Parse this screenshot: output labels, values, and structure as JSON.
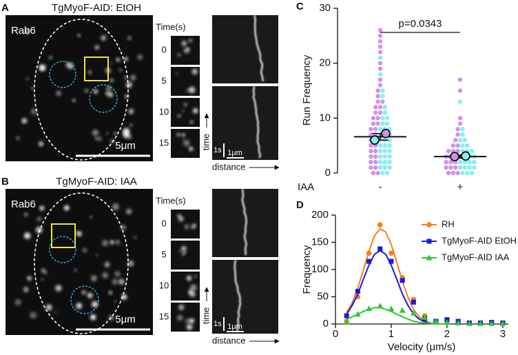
{
  "panels": [
    {
      "label": "A",
      "title": "TgMyoF-AID: EtOH",
      "stain": "Rab6",
      "scale_bar": "5μm",
      "time_header": "Time(s)",
      "times": [
        0,
        5,
        10,
        15
      ],
      "kymo_time": "time",
      "kymo_time_bar": "1s",
      "kymo_dist_bar": "1μm",
      "kymo_dist": "distance"
    },
    {
      "label": "B",
      "title": "TgMyoF-AID: IAA",
      "stain": "Rab6",
      "scale_bar": "5μm",
      "time_header": "Time(s)",
      "times": [
        0,
        5,
        10,
        15
      ],
      "kymo_time": "time",
      "kymo_time_bar": "1s",
      "kymo_dist_bar": "1μm",
      "kymo_dist": "distance"
    }
  ],
  "chart_data": [
    {
      "type": "dot",
      "label": "C",
      "ylabel": "Run Frequency",
      "xlabel": "IAA",
      "categories": [
        "-",
        "+"
      ],
      "ylim": [
        0,
        30
      ],
      "yticks": [
        0,
        10,
        20,
        30
      ],
      "dot_colors": [
        "#d291ea",
        "#86eef0"
      ],
      "dots": [
        [
          [
            26,
            25,
            24,
            23,
            22,
            20,
            19,
            17,
            16,
            15,
            14,
            13,
            13,
            12,
            12,
            11,
            11,
            10,
            10,
            9,
            9,
            8,
            8,
            7,
            7,
            6,
            6,
            5,
            5,
            4,
            4,
            3,
            3,
            2,
            2,
            1,
            1,
            0,
            0
          ],
          [
            21,
            18,
            15,
            14,
            12,
            11,
            10,
            10,
            9,
            9,
            8,
            8,
            8,
            7,
            7,
            7,
            6,
            6,
            6,
            5,
            5,
            5,
            4,
            4,
            4,
            3,
            3,
            3,
            2,
            2,
            2,
            1,
            1,
            1,
            0,
            0
          ]
        ],
        [
          [
            17,
            15,
            10,
            9,
            8,
            7,
            6,
            5,
            5,
            4,
            4,
            4,
            3,
            3,
            3,
            2,
            2,
            2,
            1,
            1,
            1,
            0,
            0,
            0
          ],
          [
            13,
            8,
            7,
            6,
            6,
            5,
            5,
            4,
            4,
            4,
            3,
            3,
            3,
            3,
            2,
            2,
            2,
            2,
            1,
            1,
            1,
            1,
            0,
            0,
            0
          ]
        ]
      ],
      "replicate_means": [
        [
          7.2,
          6.0
        ],
        [
          3.0,
          3.1
        ]
      ],
      "means": [
        6.6,
        3.0
      ],
      "errors": [
        0.6,
        0.3
      ],
      "annotation": "p=0.0343"
    },
    {
      "type": "line",
      "label": "D",
      "ylabel": "Frequency",
      "xlabel": "Velocity (μm/s)",
      "xlim": [
        0,
        3.1
      ],
      "xticks": [
        0,
        1,
        2,
        3
      ],
      "ylim": [
        0,
        200
      ],
      "yticks": [
        0,
        50,
        100,
        150,
        200
      ],
      "x": [
        0.2,
        0.4,
        0.6,
        0.8,
        1.0,
        1.2,
        1.4,
        1.6,
        1.8,
        2.0,
        2.2,
        2.4,
        2.6,
        2.8,
        3.0
      ],
      "fit_x": [
        0.2,
        0.3,
        0.4,
        0.5,
        0.6,
        0.7,
        0.8,
        0.9,
        1.0,
        1.1,
        1.2,
        1.3,
        1.4,
        1.5,
        1.6,
        1.7,
        1.8,
        1.9,
        2.0
      ],
      "series": [
        {
          "name": "RH",
          "color": "#f47f20",
          "marker": "circle",
          "values": [
            5,
            50,
            130,
            182,
            130,
            85,
            45,
            15,
            5,
            5,
            3,
            2,
            2,
            1,
            1
          ],
          "fit": [
            21,
            39,
            66,
            99,
            134,
            162,
            175,
            169,
            146,
            113,
            78,
            49,
            27,
            13,
            6,
            2,
            1,
            0,
            0
          ]
        },
        {
          "name": "TgMyoF-AID EtOH",
          "color": "#1a1adb",
          "marker": "square",
          "values": [
            15,
            60,
            115,
            138,
            115,
            80,
            40,
            10,
            5,
            8,
            5,
            2,
            2,
            3,
            2
          ],
          "fit": [
            18,
            34,
            55,
            82,
            108,
            128,
            135,
            128,
            108,
            82,
            55,
            34,
            18,
            9,
            4,
            1,
            1,
            0,
            0
          ]
        },
        {
          "name": "TgMyoF-AID IAA",
          "color": "#33c433",
          "marker": "triangle",
          "values": [
            3,
            18,
            28,
            33,
            28,
            25,
            20,
            12,
            5,
            3,
            2,
            1,
            1,
            1,
            1
          ],
          "fit": [
            9,
            13,
            18,
            23,
            27,
            30,
            30,
            27,
            23,
            18,
            13,
            9,
            5,
            3,
            2,
            1,
            0,
            0,
            0
          ]
        }
      ]
    }
  ]
}
